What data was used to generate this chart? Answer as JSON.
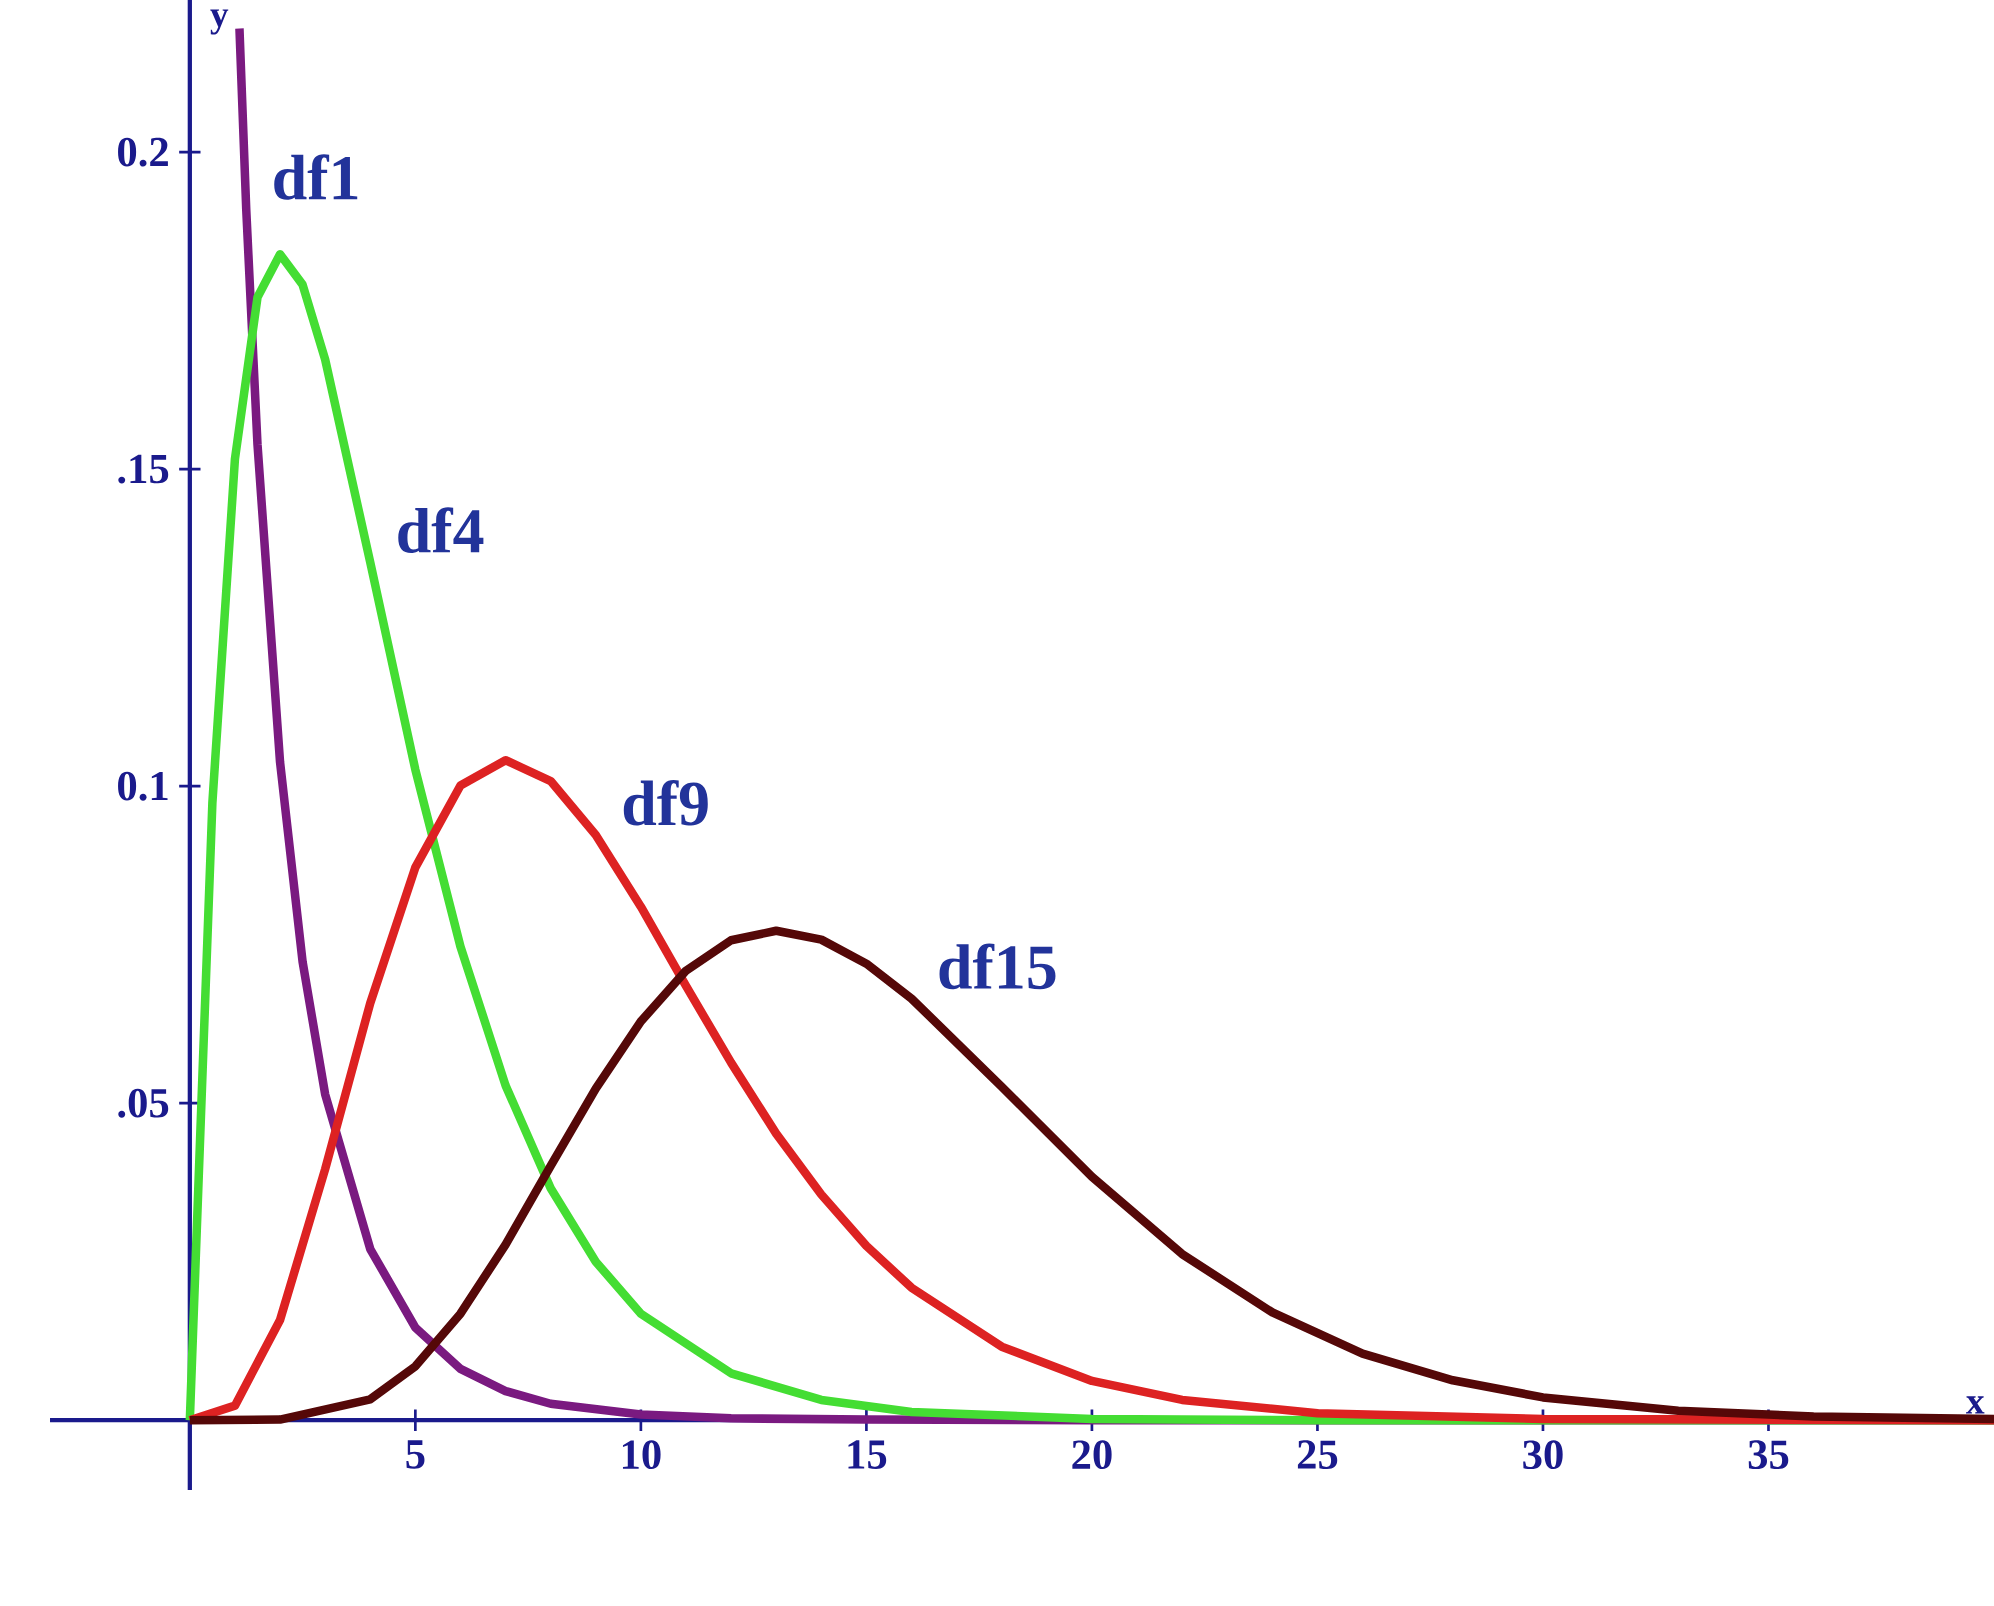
{
  "chart_data": {
    "type": "line",
    "xlabel": "x",
    "ylabel": "y",
    "xlim": [
      -3.1,
      40
    ],
    "ylim": [
      -0.011,
      0.224
    ],
    "xticks": [
      5,
      10,
      15,
      20,
      25,
      30,
      35
    ],
    "yticks": [
      {
        "value": 0.05,
        "label": ".05"
      },
      {
        "value": 0.1,
        "label": "0.1"
      },
      {
        "value": 0.15,
        "label": ".15"
      },
      {
        "value": 0.2,
        "label": "0.2"
      }
    ],
    "series": [
      {
        "name": "df1",
        "color": "#7a1a80",
        "x": [
          1.1,
          1.25,
          1.5,
          2,
          2.5,
          3,
          4,
          5,
          6,
          7,
          8,
          10,
          12,
          15,
          20,
          30,
          40
        ],
        "values": [
          0.2195,
          0.191,
          0.1539,
          0.1038,
          0.0723,
          0.0514,
          0.027,
          0.0146,
          0.0081,
          0.0046,
          0.0026,
          0.0009,
          0.0003,
          0.0001,
          0,
          0,
          0
        ]
      },
      {
        "name": "df4",
        "color": "#44dd33",
        "x": [
          0,
          0.5,
          1,
          1.5,
          2,
          2.5,
          3,
          4,
          5,
          6,
          7,
          8,
          9,
          10,
          12,
          14,
          16,
          20,
          25,
          40
        ],
        "values": [
          0,
          0.0974,
          0.1516,
          0.1771,
          0.1839,
          0.1791,
          0.1673,
          0.1353,
          0.1026,
          0.0747,
          0.0528,
          0.0366,
          0.025,
          0.0168,
          0.0074,
          0.0032,
          0.0013,
          0.0002,
          0,
          0
        ]
      },
      {
        "name": "df9",
        "color": "#dd2222",
        "x": [
          0,
          1,
          2,
          3,
          4,
          5,
          6,
          7,
          8,
          9,
          10,
          11,
          12,
          13,
          14,
          15,
          16,
          18,
          20,
          22,
          25,
          30,
          40
        ],
        "values": [
          0,
          0.0023,
          0.0158,
          0.0396,
          0.0658,
          0.0872,
          0.1001,
          0.1041,
          0.1008,
          0.0923,
          0.081,
          0.0685,
          0.0564,
          0.0452,
          0.0356,
          0.0275,
          0.0209,
          0.0116,
          0.0062,
          0.0032,
          0.0011,
          0.0002,
          0
        ]
      },
      {
        "name": "df15",
        "color": "#550808",
        "x": [
          0,
          2,
          4,
          5,
          6,
          7,
          8,
          9,
          10,
          11,
          12,
          13,
          14,
          15,
          16,
          18,
          20,
          22,
          24,
          26,
          28,
          30,
          33,
          36,
          40
        ],
        "values": [
          0,
          0.0001,
          0.0033,
          0.0085,
          0.0168,
          0.0277,
          0.0401,
          0.0523,
          0.0629,
          0.0709,
          0.0757,
          0.0772,
          0.0758,
          0.072,
          0.0665,
          0.0526,
          0.0384,
          0.0262,
          0.017,
          0.0105,
          0.0063,
          0.0036,
          0.0015,
          0.0006,
          0.0002
        ]
      }
    ]
  }
}
